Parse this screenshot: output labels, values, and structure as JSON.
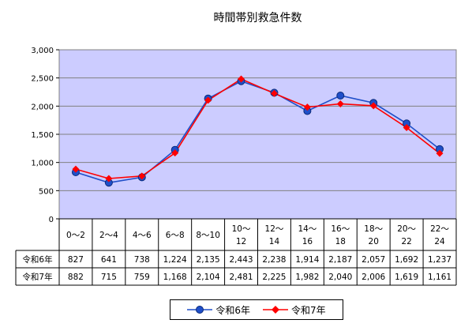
{
  "chart_data": {
    "type": "line",
    "title": "時間帯別救急件数",
    "categories": [
      [
        "0～2"
      ],
      [
        "2～4"
      ],
      [
        "4～6"
      ],
      [
        "6～8"
      ],
      [
        "8～10"
      ],
      [
        "10～",
        "12"
      ],
      [
        "12～",
        "14"
      ],
      [
        "14～",
        "16"
      ],
      [
        "16～",
        "18"
      ],
      [
        "18～",
        "20"
      ],
      [
        "20～",
        "22"
      ],
      [
        "22～",
        "24"
      ]
    ],
    "ylim": [
      0,
      3000
    ],
    "yticks": [
      0,
      500,
      1000,
      1500,
      2000,
      2500,
      3000
    ],
    "ytick_labels": [
      "0",
      "500",
      "1,000",
      "1,500",
      "2,000",
      "2,500",
      "3,000"
    ],
    "grid": true,
    "legend_position": "bottom",
    "series": [
      {
        "name": "令和6年",
        "color": "#1f4fc9",
        "marker": "circle",
        "values": [
          827,
          641,
          738,
          1224,
          2135,
          2443,
          2238,
          1914,
          2187,
          2057,
          1692,
          1237
        ],
        "value_labels": [
          "827",
          "641",
          "738",
          "1,224",
          "2,135",
          "2,443",
          "2,238",
          "1,914",
          "2,187",
          "2,057",
          "1,692",
          "1,237"
        ]
      },
      {
        "name": "令和7年",
        "color": "#ff0000",
        "marker": "diamond",
        "values": [
          882,
          715,
          759,
          1168,
          2104,
          2481,
          2225,
          1982,
          2040,
          2006,
          1619,
          1161
        ],
        "value_labels": [
          "882",
          "715",
          "759",
          "1,168",
          "2,104",
          "2,481",
          "2,225",
          "1,982",
          "2,040",
          "2,006",
          "1,619",
          "1,161"
        ]
      }
    ],
    "plot_background": "#ccccff"
  },
  "legend": {
    "items": [
      {
        "label": "令和6年"
      },
      {
        "label": "令和7年"
      }
    ]
  }
}
